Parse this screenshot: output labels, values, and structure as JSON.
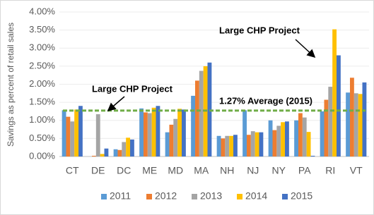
{
  "chart_data": {
    "type": "bar",
    "y_label": "Savings as percent of retail sales",
    "categories": [
      "CT",
      "DE",
      "DC",
      "ME",
      "MD",
      "MA",
      "NH",
      "NJ",
      "NY",
      "PA",
      "RI",
      "VT"
    ],
    "series": [
      {
        "name": "2011",
        "color": "#5b9bd5",
        "values": [
          1.28,
          0,
          0.2,
          1.33,
          0.67,
          1.68,
          0.57,
          1.28,
          1.0,
          1.0,
          1.25,
          1.77
        ]
      },
      {
        "name": "2012",
        "color": "#ed7d31",
        "values": [
          1.1,
          0.02,
          0.18,
          1.22,
          0.88,
          2.1,
          0.5,
          0.6,
          0.73,
          1.2,
          1.57,
          2.18
        ]
      },
      {
        "name": "2013",
        "color": "#a5a5a5",
        "values": [
          0.97,
          1.17,
          0.4,
          1.2,
          1.04,
          2.37,
          0.57,
          0.7,
          0.85,
          1.08,
          1.93,
          1.75
        ]
      },
      {
        "name": "2014",
        "color": "#ffc000",
        "values": [
          1.3,
          0.07,
          0.52,
          1.35,
          1.32,
          2.5,
          0.57,
          0.67,
          0.95,
          0.68,
          3.52,
          1.73
        ]
      },
      {
        "name": "2015",
        "color": "#4472c4",
        "values": [
          1.4,
          0.22,
          0.47,
          1.4,
          1.3,
          2.6,
          0.6,
          0.67,
          0.97,
          0.02,
          2.8,
          2.05
        ]
      }
    ],
    "ylim": [
      0,
      4
    ],
    "yticks": [
      {
        "value": 0,
        "label": "0.00%"
      },
      {
        "value": 0.5,
        "label": "0.50%"
      },
      {
        "value": 1,
        "label": "1.00%"
      },
      {
        "value": 1.5,
        "label": "1.50%"
      },
      {
        "value": 2,
        "label": "2.00%"
      },
      {
        "value": 2.5,
        "label": "2.50%"
      },
      {
        "value": 3,
        "label": "3.00%"
      },
      {
        "value": 3.5,
        "label": "3.50%"
      },
      {
        "value": 4,
        "label": "4.00%"
      }
    ],
    "grid": true,
    "average": {
      "value": 1.27,
      "label": "1.27% Average (2015)",
      "color": "#70ad47"
    },
    "annotations": [
      "Large CHP Project",
      "Large CHP Project"
    ],
    "legend": "bottom"
  }
}
